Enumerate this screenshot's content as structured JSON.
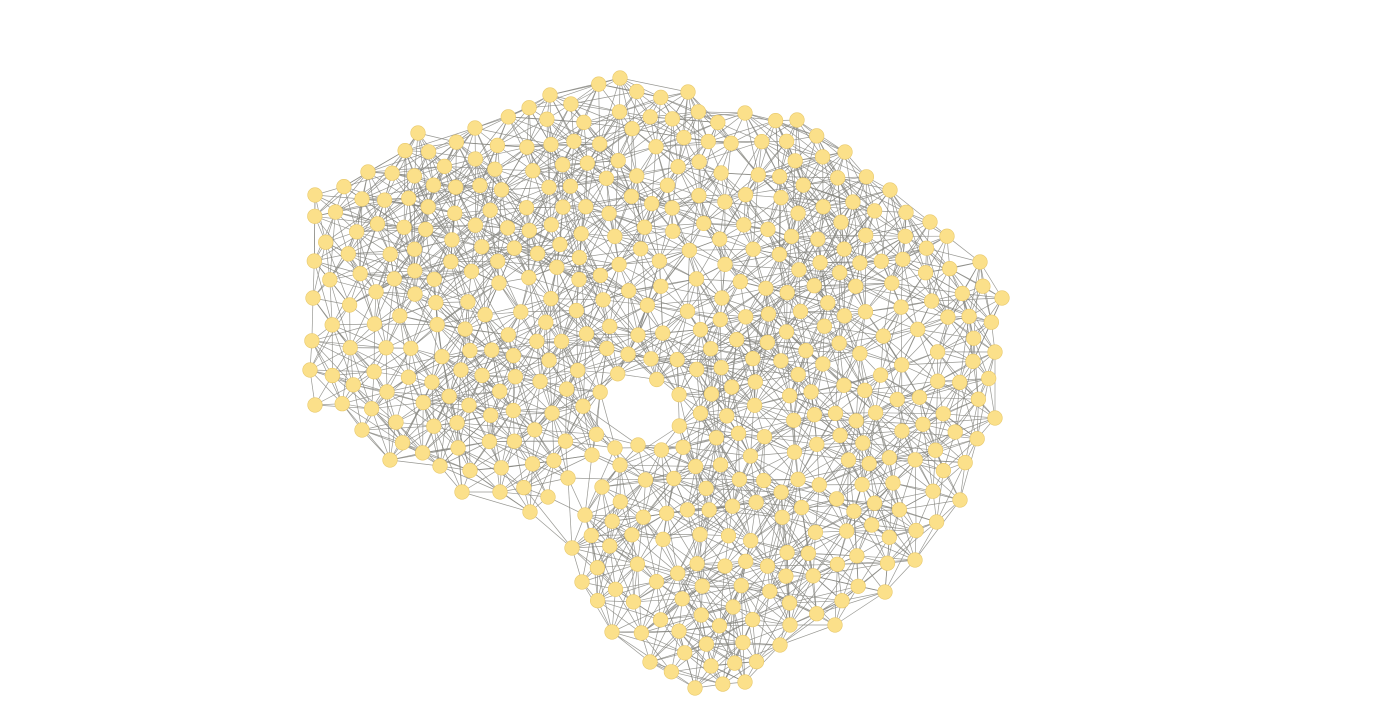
{
  "graph": {
    "node_color": "#fbe08a",
    "node_stroke": "#e8c86a",
    "edge_color": "#868680",
    "background": "#ffffff"
  }
}
